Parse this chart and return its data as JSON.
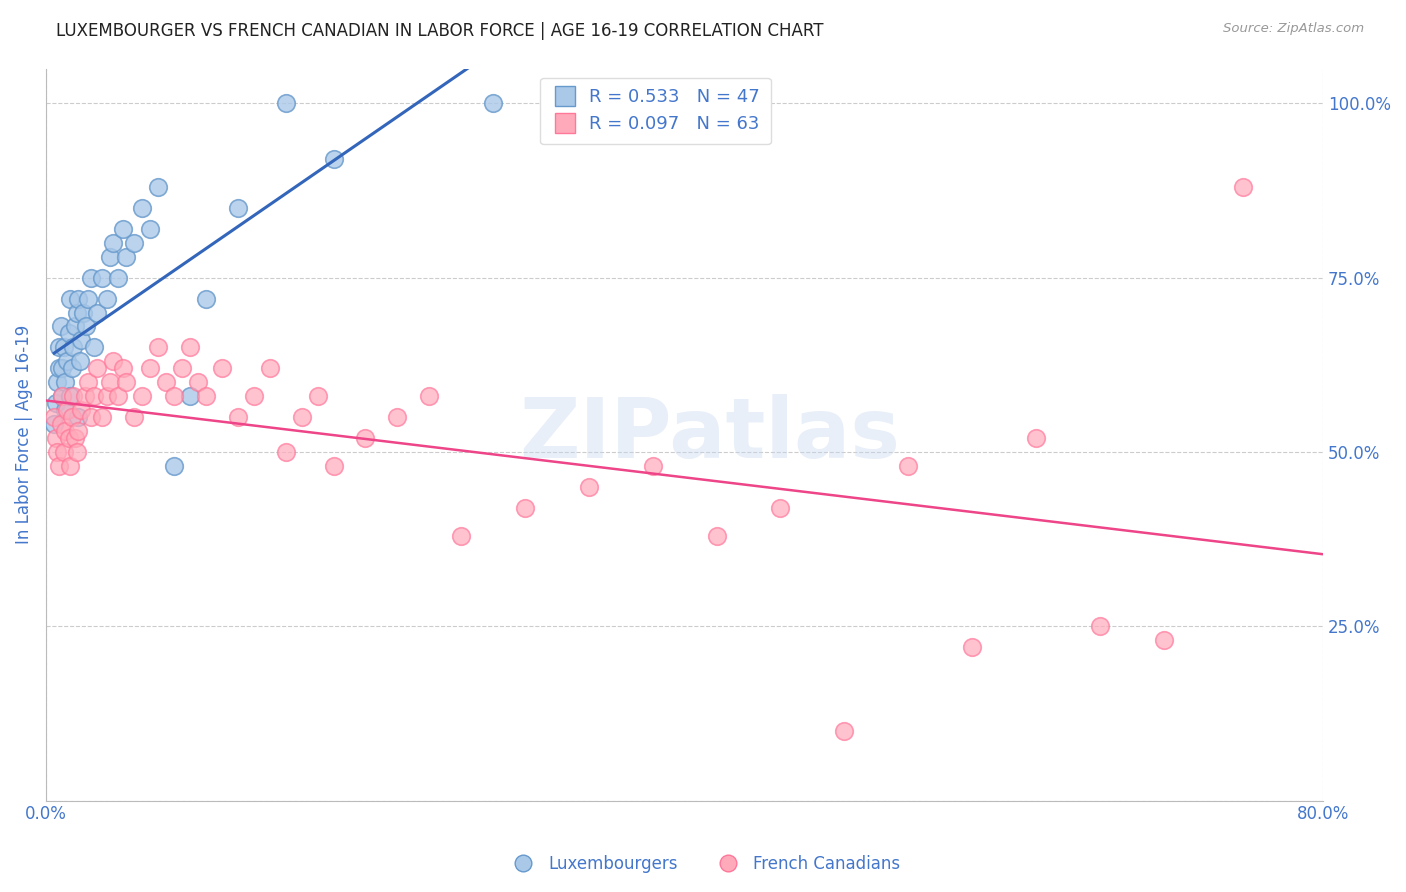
{
  "title": "LUXEMBOURGER VS FRENCH CANADIAN IN LABOR FORCE | AGE 16-19 CORRELATION CHART",
  "source": "Source: ZipAtlas.com",
  "ylabel_left": "In Labor Force | Age 16-19",
  "xlim": [
    0.0,
    0.8
  ],
  "ylim": [
    0.0,
    1.05
  ],
  "lux_color": "#aac8e8",
  "fc_color": "#ffaabb",
  "lux_edge": "#6699cc",
  "fc_edge": "#ff7799",
  "blue_line_color": "#3366bb",
  "pink_line_color": "#ee4488",
  "watermark": "ZIPatlas",
  "title_color": "#222222",
  "axis_label_color": "#4477cc",
  "tick_label_color": "#4477cc",
  "lux_R": 0.533,
  "lux_N": 47,
  "fc_R": 0.097,
  "fc_N": 63,
  "lux_x": [
    0.005,
    0.006,
    0.007,
    0.008,
    0.008,
    0.009,
    0.01,
    0.01,
    0.011,
    0.012,
    0.012,
    0.013,
    0.014,
    0.015,
    0.015,
    0.016,
    0.017,
    0.018,
    0.019,
    0.02,
    0.02,
    0.021,
    0.022,
    0.023,
    0.025,
    0.026,
    0.028,
    0.03,
    0.032,
    0.035,
    0.038,
    0.04,
    0.042,
    0.045,
    0.048,
    0.05,
    0.055,
    0.06,
    0.065,
    0.07,
    0.08,
    0.09,
    0.1,
    0.12,
    0.15,
    0.18,
    0.28
  ],
  "lux_y": [
    0.54,
    0.57,
    0.6,
    0.62,
    0.65,
    0.68,
    0.58,
    0.62,
    0.65,
    0.56,
    0.6,
    0.63,
    0.67,
    0.58,
    0.72,
    0.62,
    0.65,
    0.68,
    0.7,
    0.55,
    0.72,
    0.63,
    0.66,
    0.7,
    0.68,
    0.72,
    0.75,
    0.65,
    0.7,
    0.75,
    0.72,
    0.78,
    0.8,
    0.75,
    0.82,
    0.78,
    0.8,
    0.85,
    0.82,
    0.88,
    0.48,
    0.58,
    0.72,
    0.85,
    1.0,
    0.92,
    1.0
  ],
  "fc_x": [
    0.005,
    0.006,
    0.007,
    0.008,
    0.009,
    0.01,
    0.011,
    0.012,
    0.013,
    0.014,
    0.015,
    0.016,
    0.017,
    0.018,
    0.019,
    0.02,
    0.022,
    0.024,
    0.026,
    0.028,
    0.03,
    0.032,
    0.035,
    0.038,
    0.04,
    0.042,
    0.045,
    0.048,
    0.05,
    0.055,
    0.06,
    0.065,
    0.07,
    0.075,
    0.08,
    0.085,
    0.09,
    0.095,
    0.1,
    0.11,
    0.12,
    0.13,
    0.14,
    0.15,
    0.16,
    0.17,
    0.18,
    0.2,
    0.22,
    0.24,
    0.26,
    0.3,
    0.34,
    0.38,
    0.42,
    0.46,
    0.5,
    0.54,
    0.58,
    0.62,
    0.66,
    0.7,
    0.75
  ],
  "fc_y": [
    0.55,
    0.52,
    0.5,
    0.48,
    0.54,
    0.58,
    0.5,
    0.53,
    0.56,
    0.52,
    0.48,
    0.55,
    0.58,
    0.52,
    0.5,
    0.53,
    0.56,
    0.58,
    0.6,
    0.55,
    0.58,
    0.62,
    0.55,
    0.58,
    0.6,
    0.63,
    0.58,
    0.62,
    0.6,
    0.55,
    0.58,
    0.62,
    0.65,
    0.6,
    0.58,
    0.62,
    0.65,
    0.6,
    0.58,
    0.62,
    0.55,
    0.58,
    0.62,
    0.5,
    0.55,
    0.58,
    0.48,
    0.52,
    0.55,
    0.58,
    0.38,
    0.42,
    0.45,
    0.48,
    0.38,
    0.42,
    0.1,
    0.48,
    0.22,
    0.52,
    0.25,
    0.23,
    0.88
  ]
}
